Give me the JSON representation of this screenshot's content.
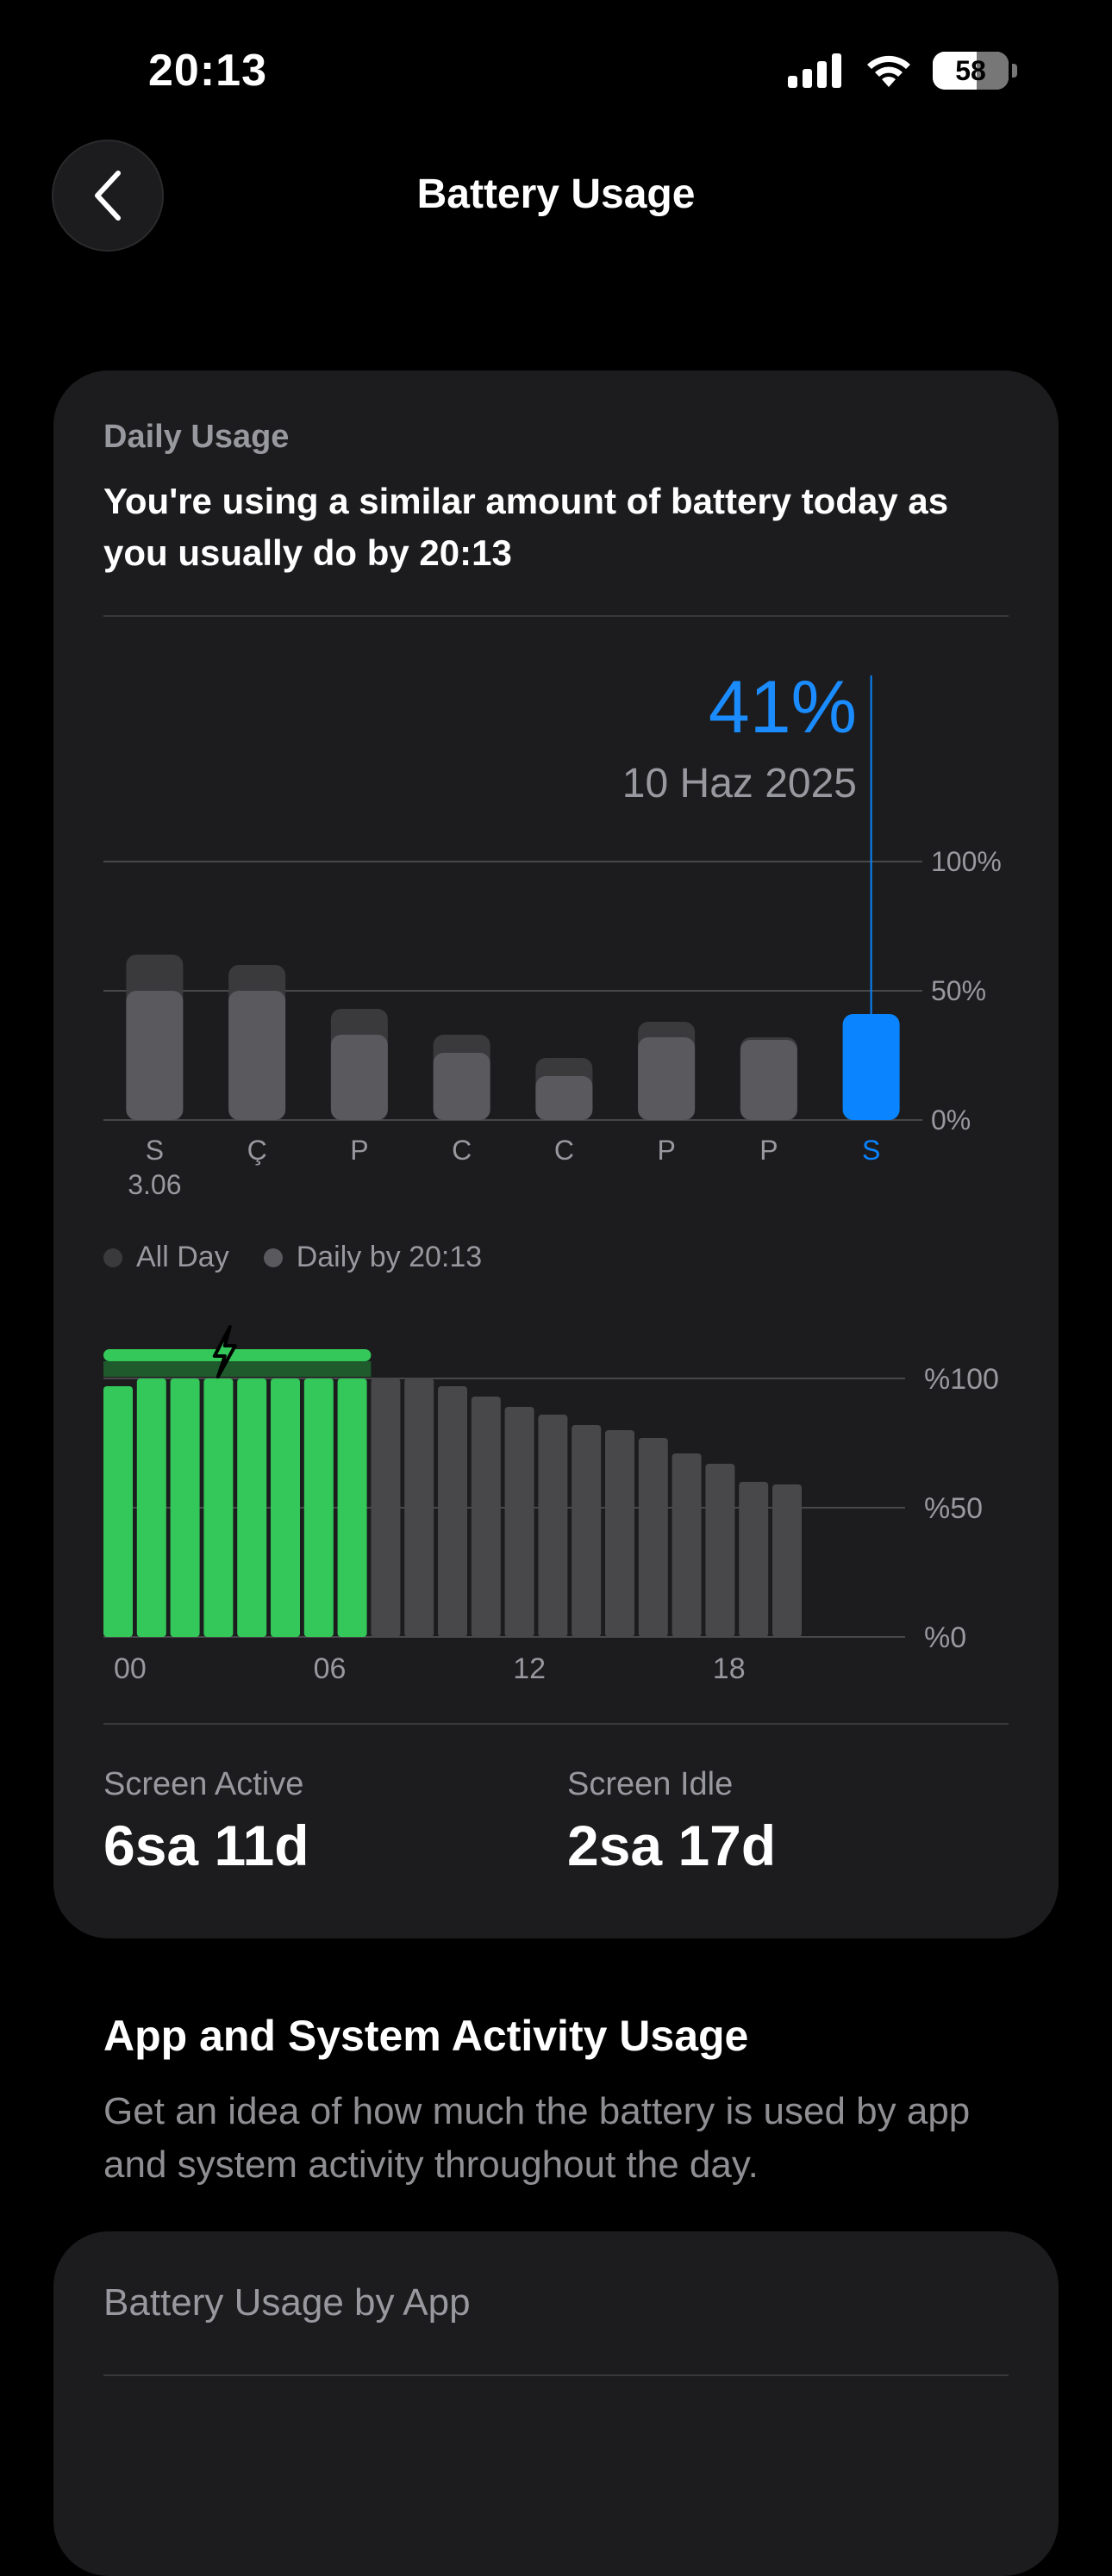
{
  "status_bar": {
    "time": "20:13",
    "battery_percent": "58",
    "battery_level": 0.58
  },
  "header": {
    "title": "Battery Usage"
  },
  "daily": {
    "label": "Daily Usage",
    "headline": "You're using a similar amount of battery today as you usually do by 20:13",
    "selected_percent": "41%",
    "selected_date": "10 Haz 2025"
  },
  "legend": {
    "all_day": "All Day",
    "daily_by": "Daily by 20:13"
  },
  "chart_data": [
    {
      "type": "bar",
      "categories": [
        "S",
        "Ç",
        "P",
        "C",
        "C",
        "P",
        "P",
        "S"
      ],
      "first_category_sublabel": "3.06",
      "y_ticks": [
        "100%",
        "50%",
        "0%"
      ],
      "ylim": [
        0,
        100
      ],
      "series": [
        {
          "name": "All Day",
          "values": [
            64,
            60,
            43,
            33,
            24,
            38,
            32,
            41
          ]
        },
        {
          "name": "Daily by 20:13",
          "values": [
            50,
            50,
            33,
            26,
            17,
            32,
            31,
            41
          ]
        }
      ],
      "selected_index": 7,
      "colors": {
        "all_day": "#3a3a3c",
        "daily": "#5a5a5e",
        "selected": "#0a84ff"
      }
    },
    {
      "type": "bar",
      "x_ticks": [
        "00",
        "06",
        "12",
        "18"
      ],
      "y_ticks": [
        "%100",
        "%50",
        "%0"
      ],
      "ylim": [
        0,
        100
      ],
      "values": [
        97,
        100,
        100,
        100,
        100,
        100,
        100,
        100,
        100,
        100,
        97,
        93,
        89,
        86,
        82,
        80,
        77,
        71,
        67,
        60,
        59
      ],
      "charging_count": 8,
      "colors": {
        "charging": "#34c759",
        "normal": "#48484a"
      }
    }
  ],
  "stats": {
    "screen_active_label": "Screen Active",
    "screen_active_value": "6sa 11d",
    "screen_idle_label": "Screen Idle",
    "screen_idle_value": "2sa 17d"
  },
  "activity": {
    "title": "App and System Activity Usage",
    "description": "Get an idea of how much the battery is used by app and system activity throughout the day."
  },
  "by_app": {
    "label": "Battery Usage by App"
  }
}
